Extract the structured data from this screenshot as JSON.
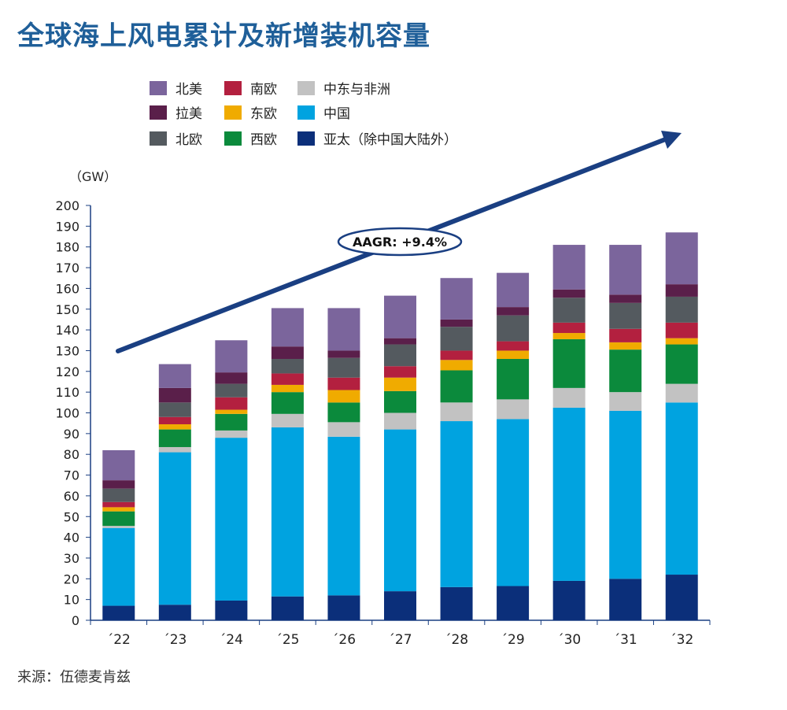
{
  "title": "全球海上风电累计及新增装机容量",
  "source": {
    "label": "来源：",
    "text": "伍德麦肯兹"
  },
  "unit_label": "（GW）",
  "annotation": "AAGR: +9.4%",
  "colors": {
    "北美": "#7b659c",
    "拉美": "#5a1f4a",
    "北欧": "#545a5f",
    "南欧": "#b3203f",
    "东欧": "#f0ab00",
    "西欧": "#0b8a3c",
    "中东与非洲": "#c2c2c2",
    "中国": "#00a3e0",
    "亚太（除中国大陆外）": "#0b2f7a",
    "arrow": "#1a3f82",
    "title": "#1f5f99"
  },
  "chart_data": {
    "type": "bar",
    "stacked": true,
    "categories": [
      "´22",
      "´23",
      "´24",
      "´25",
      "´26",
      "´27",
      "´28",
      "´29",
      "´30",
      "´31",
      "´32"
    ],
    "ylim": [
      0,
      200
    ],
    "yticks": [
      0,
      10,
      20,
      30,
      40,
      50,
      60,
      70,
      80,
      90,
      100,
      110,
      120,
      130,
      140,
      150,
      160,
      170,
      180,
      190,
      200
    ],
    "ylabel": "（GW）",
    "xlabel": "",
    "grid": false,
    "legend_placement": "top",
    "legend_order": [
      "北美",
      "南欧",
      "中东与非洲",
      "拉美",
      "东欧",
      "中国",
      "北欧",
      "西欧",
      "亚太（除中国大陆外）"
    ],
    "series": [
      {
        "name": "亚太（除中国大陆外）",
        "values": [
          7,
          7.5,
          9.5,
          11.5,
          12,
          14,
          16,
          16.5,
          19,
          20,
          22
        ]
      },
      {
        "name": "中国",
        "values": [
          37.5,
          73.5,
          78.5,
          81.5,
          76.5,
          78,
          80,
          80.5,
          83.5,
          81,
          83
        ]
      },
      {
        "name": "中东与非洲",
        "values": [
          1,
          2.5,
          3.5,
          6.5,
          7,
          8,
          9,
          9.5,
          9.5,
          9,
          9
        ]
      },
      {
        "name": "西欧",
        "values": [
          7,
          8.5,
          8,
          10.5,
          9.5,
          10.5,
          15.5,
          19.5,
          23.5,
          20.5,
          19
        ]
      },
      {
        "name": "东欧",
        "values": [
          2,
          2.5,
          2,
          3.5,
          6,
          6.5,
          5,
          4,
          3,
          3.5,
          3
        ]
      },
      {
        "name": "南欧",
        "values": [
          2.5,
          3.5,
          6,
          5.5,
          6,
          5.5,
          4.5,
          4.5,
          5,
          6.5,
          7.5
        ]
      },
      {
        "name": "北欧",
        "values": [
          6.5,
          7,
          6.5,
          7,
          9.5,
          10.5,
          11.5,
          12.5,
          12,
          12.5,
          12.5
        ]
      },
      {
        "name": "拉美",
        "values": [
          4,
          7,
          5.5,
          6,
          3.5,
          3,
          3.5,
          4,
          4,
          4,
          6
        ]
      },
      {
        "name": "北美",
        "values": [
          14.5,
          11.5,
          15.5,
          18.5,
          20.5,
          20.5,
          20,
          16.5,
          21.5,
          24,
          25
        ]
      }
    ]
  }
}
